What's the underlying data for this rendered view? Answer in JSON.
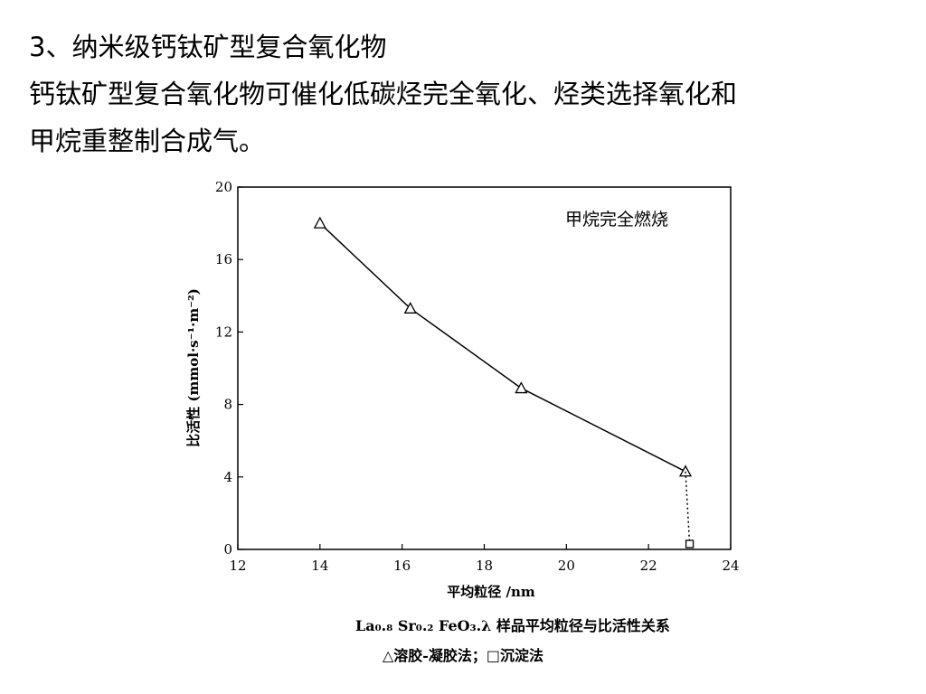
{
  "slide": {
    "heading": "3、纳米级钙钛矿型复合氧化物",
    "body_line1": "钙钛矿型复合氧化物可催化低碳烃完全氧化、烃类选择氧化和",
    "body_line2": "甲烷重整制合成气。"
  },
  "chart_data": {
    "type": "line",
    "annotation": "甲烷完全燃烧",
    "xlabel": "平均粒径 /nm",
    "ylabel": "比活性 (mmol·s⁻¹·m⁻²)",
    "xlim": [
      12,
      24
    ],
    "ylim": [
      0,
      20
    ],
    "xticks": [
      12,
      14,
      16,
      18,
      20,
      22,
      24
    ],
    "yticks": [
      0,
      4,
      8,
      12,
      16,
      20
    ],
    "grid": false,
    "series": [
      {
        "marker": "triangle",
        "line": "solid",
        "x": [
          14.0,
          16.2,
          18.9,
          22.9
        ],
        "y": [
          18.0,
          13.3,
          8.9,
          4.3
        ]
      },
      {
        "marker": "square",
        "line": "dotted",
        "x": [
          23.0
        ],
        "y": [
          0.3
        ],
        "connect_from": {
          "x": 22.9,
          "y": 4.3
        }
      }
    ],
    "caption_line1": "La₀.₈ Sr₀.₂ FeO₃.λ 样品平均粒径与比活性关系",
    "caption_line2": "△溶胶-凝胶法；□沉淀法"
  }
}
